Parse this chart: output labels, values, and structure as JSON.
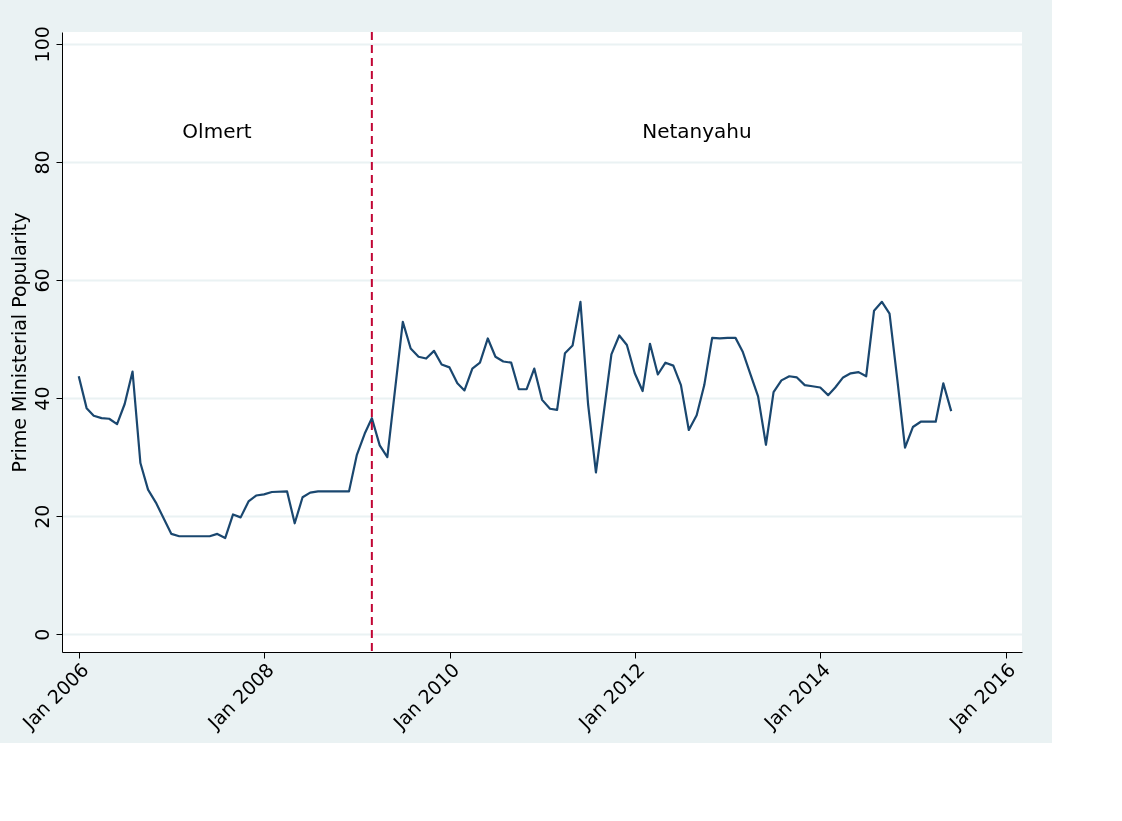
{
  "chart_data": {
    "type": "line",
    "ylabel": "Prime Ministerial Popularity",
    "x": [
      "2006-01",
      "2006-02",
      "2006-03",
      "2006-04",
      "2006-05",
      "2006-06",
      "2006-07",
      "2006-08",
      "2006-09",
      "2006-10",
      "2006-11",
      "2007-01",
      "2007-02",
      "2007-06",
      "2007-07",
      "2007-08",
      "2007-09",
      "2007-10",
      "2007-11",
      "2007-12",
      "2008-01",
      "2008-02",
      "2008-04",
      "2008-05",
      "2008-06",
      "2008-07",
      "2008-08",
      "2008-12",
      "2009-01",
      "2009-02",
      "2009-03",
      "2009-04",
      "2009-05",
      "2009-07",
      "2009-08",
      "2009-09",
      "2009-10",
      "2009-11",
      "2009-12",
      "2010-01",
      "2010-02",
      "2010-03",
      "2010-04",
      "2010-05",
      "2010-06",
      "2010-07",
      "2010-08",
      "2010-09",
      "2010-10",
      "2010-11",
      "2010-12",
      "2011-01",
      "2011-02",
      "2011-03",
      "2011-04",
      "2011-05",
      "2011-06",
      "2011-07",
      "2011-08",
      "2011-10",
      "2011-11",
      "2011-12",
      "2012-01",
      "2012-02",
      "2012-03",
      "2012-04",
      "2012-05",
      "2012-06",
      "2012-07",
      "2012-08",
      "2012-09",
      "2012-10",
      "2012-11",
      "2012-12",
      "2013-01",
      "2013-02",
      "2013-03",
      "2013-04",
      "2013-05",
      "2013-06",
      "2013-07",
      "2013-08",
      "2013-09",
      "2013-10",
      "2013-11",
      "2013-12",
      "2014-01",
      "2014-02",
      "2014-03",
      "2014-04",
      "2014-05",
      "2014-06",
      "2014-07",
      "2014-08",
      "2014-09",
      "2014-10",
      "2014-11",
      "2014-12",
      "2015-01",
      "2015-02",
      "2015-03",
      "2015-04",
      "2015-05",
      "2015-06"
    ],
    "series": [
      {
        "color": "#1a476f",
        "values": [
          43.7,
          38.3,
          37,
          36.6,
          36.5,
          35.6,
          39,
          44.5,
          29,
          24.5,
          22.3,
          17,
          16.6,
          16.6,
          17,
          16.3,
          20.3,
          19.8,
          22.5,
          23.5,
          23.7,
          24.1,
          24.2,
          18.8,
          23.2,
          24,
          24.2,
          24.2,
          30.4,
          34,
          36.6,
          32,
          30,
          52.9,
          48.4,
          47,
          46.7,
          48,
          45.7,
          45.2,
          42.5,
          41.3,
          45,
          46,
          50.1,
          47,
          46.2,
          46,
          41.5,
          41.5,
          45,
          39.7,
          38.2,
          38,
          47.6,
          48.9,
          56.3,
          39,
          27.4,
          47.4,
          50.6,
          49,
          44.2,
          41.2,
          49.2,
          44,
          46,
          45.5,
          42.2,
          34.6,
          37.1,
          42.2,
          50.2,
          50.1,
          50.2,
          50.2,
          47.9,
          44,
          40.3,
          32.1,
          41,
          43,
          43.7,
          43.5,
          42.2,
          42,
          41.8,
          40.5,
          41.8,
          43.5,
          44.2,
          44.4,
          43.7,
          54.8,
          56.3,
          54.3,
          43,
          31.6,
          35.1,
          36,
          36,
          36,
          42.5,
          37.8
        ]
      }
    ],
    "xlim": [
      "2005-10-27",
      "2016-03-06"
    ],
    "xticks": [
      {
        "value": "2006-01",
        "label": "Jan 2006"
      },
      {
        "value": "2008-01",
        "label": "Jan 2008"
      },
      {
        "value": "2010-01",
        "label": "Jan 2010"
      },
      {
        "value": "2012-01",
        "label": "Jan 2012"
      },
      {
        "value": "2014-01",
        "label": "Jan 2014"
      },
      {
        "value": "2016-01",
        "label": "Jan 2016"
      }
    ],
    "ylim": [
      -3,
      102
    ],
    "yticks": [
      0,
      20,
      40,
      60,
      80,
      100
    ],
    "grid": "y",
    "ref_lines": [
      {
        "axis": "x",
        "value": "2009-03",
        "color": "#c10534",
        "line_style": "dashed"
      }
    ],
    "annotations": [
      "Olmert",
      "Netanyahu"
    ]
  }
}
